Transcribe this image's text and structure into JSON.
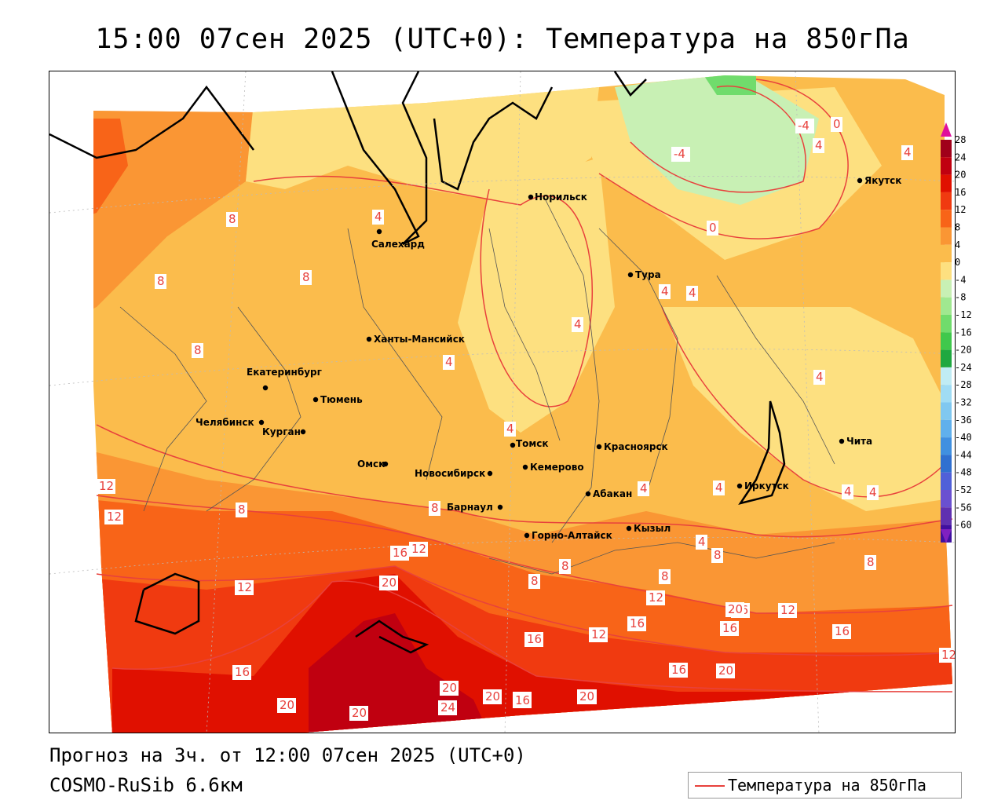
{
  "title": "15:00 07сен 2025 (UTC+0): Температура на 850гПа",
  "forecast_text": "Прогноз на 3ч. от 12:00 07сен 2025 (UTC+0)",
  "model_text": "COSMO-RuSib 6.6км",
  "legend_label": "Температура на 850гПа",
  "colorbar": {
    "ticks": [
      "28",
      "24",
      "20",
      "16",
      "12",
      "8",
      "4",
      "0",
      "-4",
      "-8",
      "-12",
      "-16",
      "-20",
      "-24",
      "-28",
      "-32",
      "-36",
      "-40",
      "-44",
      "-48",
      "-52",
      "-56",
      "-60"
    ],
    "colors": [
      "#a0001a",
      "#c00010",
      "#e01000",
      "#f03a10",
      "#f86418",
      "#fa9634",
      "#fbbc4c",
      "#fde080",
      "#c8f0b4",
      "#a0e890",
      "#70dc6c",
      "#40c84c",
      "#20a840",
      "#c0ecf4",
      "#a0dcf4",
      "#80c8f0",
      "#60b0ec",
      "#4090e0",
      "#3070d0",
      "#5060d8",
      "#6a50d0",
      "#6030b0",
      "#4010a0"
    ],
    "top_arrow_color": "#e0109c",
    "bottom_arrow_color": "#8020c0"
  },
  "cities": [
    {
      "name": "Норильск"
    },
    {
      "name": "Салехард"
    },
    {
      "name": "Тура"
    },
    {
      "name": "Якутск"
    },
    {
      "name": "Ханты-Мансийск"
    },
    {
      "name": "Екатеринбург"
    },
    {
      "name": "Тюмень"
    },
    {
      "name": "Челябинск"
    },
    {
      "name": "Курган"
    },
    {
      "name": "Омск"
    },
    {
      "name": "Новосибирск"
    },
    {
      "name": "Томск"
    },
    {
      "name": "Кемерово"
    },
    {
      "name": "Красноярск"
    },
    {
      "name": "Барнаул"
    },
    {
      "name": "Абакан"
    },
    {
      "name": "Иркутск"
    },
    {
      "name": "Чита"
    },
    {
      "name": "Горно-Алтайск"
    },
    {
      "name": "Кызыл"
    }
  ],
  "isoline_labels": [
    "-4",
    "0",
    "-4",
    "4",
    "4",
    "0",
    "8",
    "8",
    "8",
    "8",
    "4",
    "4",
    "4",
    "4",
    "4",
    "4",
    "4",
    "4",
    "4",
    "4",
    "4",
    "4",
    "12",
    "12",
    "8",
    "8",
    "12",
    "16",
    "20",
    "12",
    "8",
    "8",
    "8",
    "8",
    "8",
    "12",
    "12",
    "16",
    "16",
    "16",
    "12",
    "16",
    "16",
    "20",
    "12",
    "16",
    "16",
    "20",
    "20",
    "20",
    "20",
    "20",
    "16",
    "24",
    "20",
    "16",
    "20"
  ],
  "colors": {
    "isoline": "#e8413c",
    "coast": "#000000",
    "border": "#555555"
  }
}
